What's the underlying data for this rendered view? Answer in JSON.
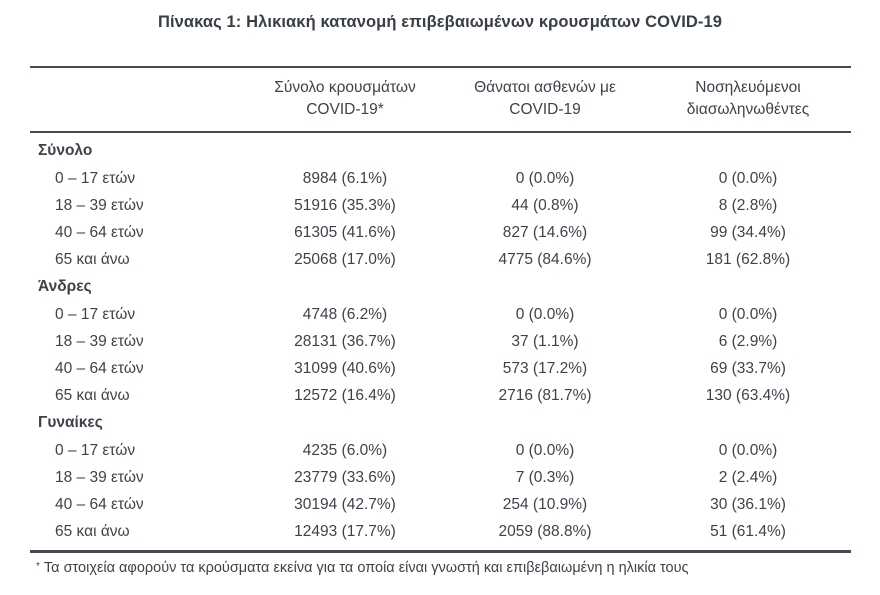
{
  "title": "Πίνακας 1: Ηλικιακή κατανομή επιβεβαιωμένων κρουσμάτων COVID-19",
  "table": {
    "columns": [
      {
        "lines": [
          "Σύνολο κρουσμάτων",
          "COVID-19*"
        ]
      },
      {
        "lines": [
          "Θάνατοι ασθενών με",
          "COVID-19"
        ]
      },
      {
        "lines": [
          "Νοσηλευόμενοι",
          "διασωληνωθέντες"
        ]
      }
    ],
    "sections": [
      {
        "label": "Σύνολο",
        "rows": [
          {
            "label": "0 – 17 ετών",
            "cases": "8984 (6.1%)",
            "deaths": "0 (0.0%)",
            "intubated": "0 (0.0%)"
          },
          {
            "label": "18 – 39 ετών",
            "cases": "51916 (35.3%)",
            "deaths": "44 (0.8%)",
            "intubated": "8 (2.8%)"
          },
          {
            "label": "40 – 64 ετών",
            "cases": "61305 (41.6%)",
            "deaths": "827 (14.6%)",
            "intubated": "99 (34.4%)"
          },
          {
            "label": "65 και άνω",
            "cases": "25068 (17.0%)",
            "deaths": "4775 (84.6%)",
            "intubated": "181 (62.8%)"
          }
        ]
      },
      {
        "label": "Άνδρες",
        "rows": [
          {
            "label": "0 – 17 ετών",
            "cases": "4748 (6.2%)",
            "deaths": "0 (0.0%)",
            "intubated": "0 (0.0%)"
          },
          {
            "label": "18 – 39 ετών",
            "cases": "28131 (36.7%)",
            "deaths": "37 (1.1%)",
            "intubated": "6 (2.9%)"
          },
          {
            "label": "40 – 64 ετών",
            "cases": "31099 (40.6%)",
            "deaths": "573 (17.2%)",
            "intubated": "69 (33.7%)"
          },
          {
            "label": "65 και άνω",
            "cases": "12572 (16.4%)",
            "deaths": "2716 (81.7%)",
            "intubated": "130 (63.4%)"
          }
        ]
      },
      {
        "label": "Γυναίκες",
        "rows": [
          {
            "label": "0 – 17 ετών",
            "cases": "4235 (6.0%)",
            "deaths": "0 (0.0%)",
            "intubated": "0 (0.0%)"
          },
          {
            "label": "18 – 39 ετών",
            "cases": "23779 (33.6%)",
            "deaths": "7 (0.3%)",
            "intubated": "2 (2.4%)"
          },
          {
            "label": "40 – 64 ετών",
            "cases": "30194 (42.7%)",
            "deaths": "254 (10.9%)",
            "intubated": "30 (36.1%)"
          },
          {
            "label": "65 και άνω",
            "cases": "12493 (17.7%)",
            "deaths": "2059 (88.8%)",
            "intubated": "51 (61.4%)"
          }
        ]
      }
    ],
    "footnote_marker": "*",
    "footnote": "Τα στοιχεία αφορούν τα κρούσματα εκείνα για τα οποία είναι γνωστή και επιβεβαιωμένη η ηλικία τους"
  },
  "colors": {
    "text": "#3d434b",
    "rule": "#454b52",
    "background": "#ffffff"
  }
}
